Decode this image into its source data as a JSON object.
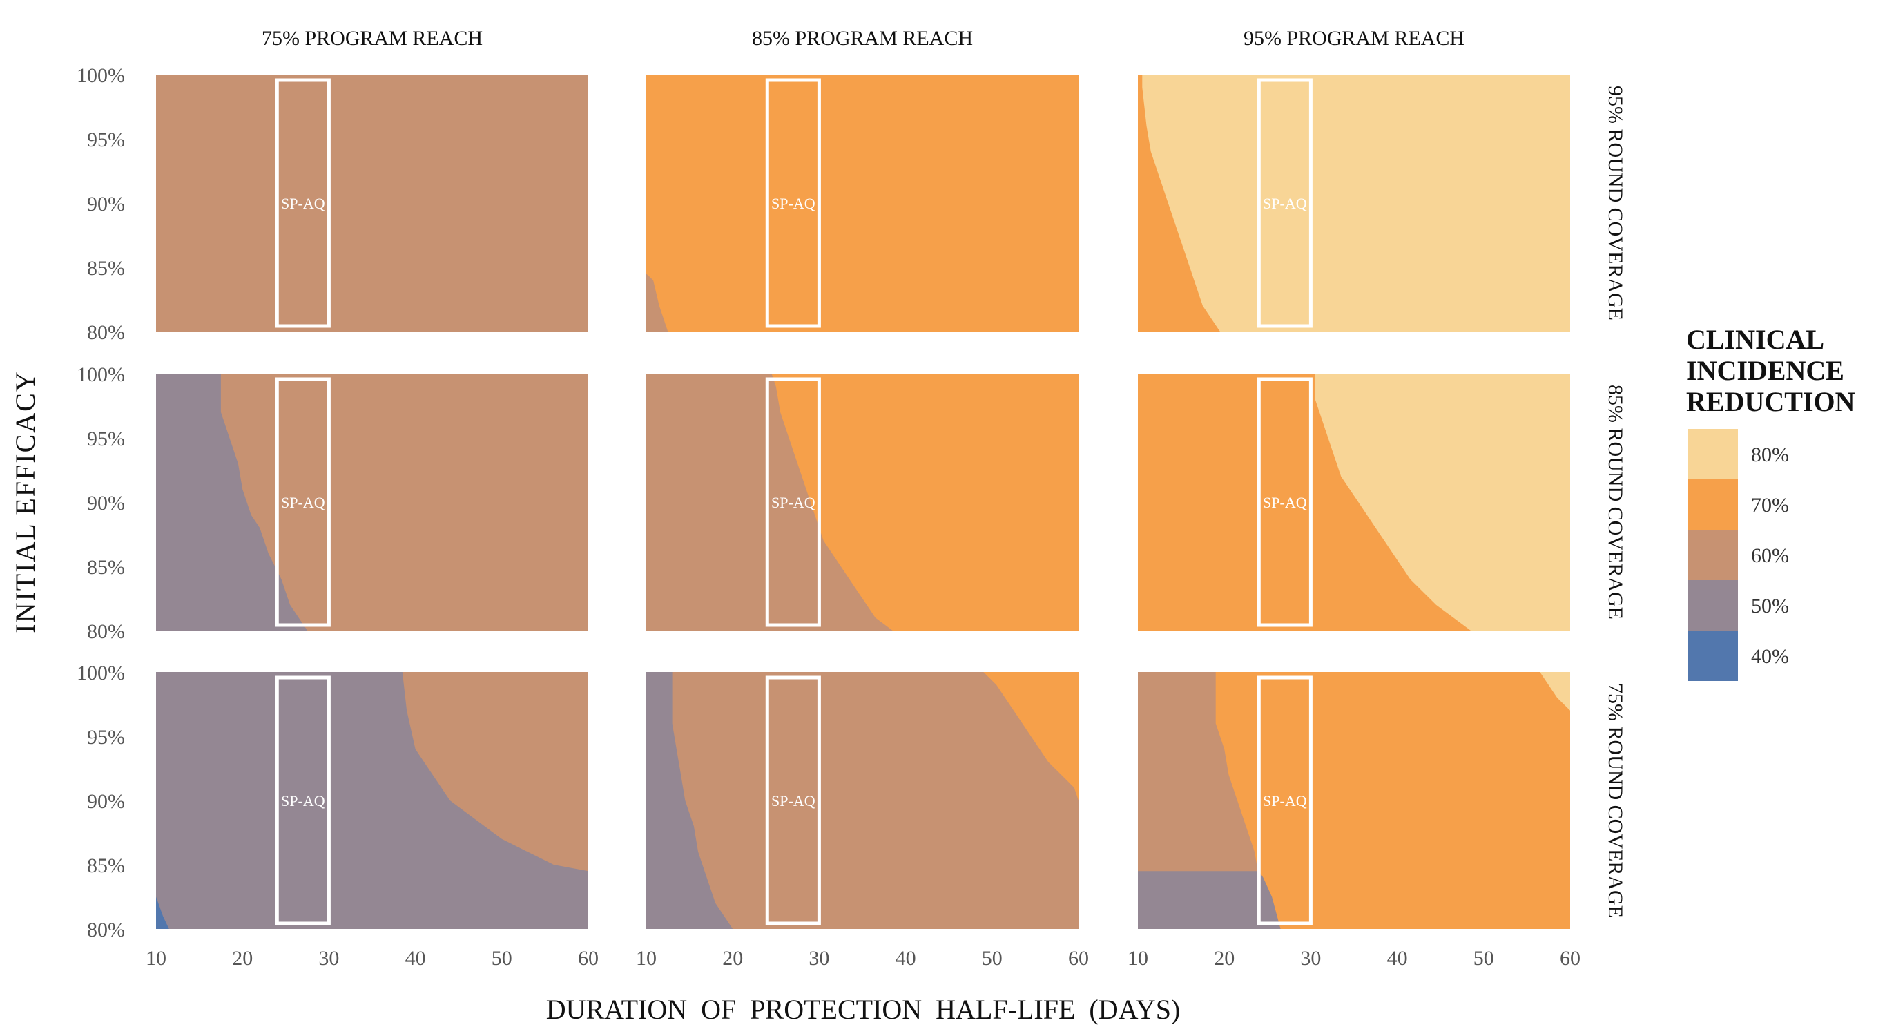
{
  "chart_data": {
    "type": "heatmap",
    "ylabel": "INITIAL EFFICACY",
    "xlabel": "DURATION OF PROTECTION HALF-LIFE (DAYS)",
    "col_facets": [
      "75% PROGRAM REACH",
      "85% PROGRAM REACH",
      "95% PROGRAM REACH"
    ],
    "row_facets": [
      "95% ROUND COVERAGE",
      "85% ROUND COVERAGE",
      "75% ROUND COVERAGE"
    ],
    "x_range": [
      10,
      60
    ],
    "y_range": [
      80,
      100
    ],
    "x_ticks": [
      10,
      20,
      30,
      40,
      50,
      60
    ],
    "x_tick_labels": [
      "10",
      "20",
      "30",
      "40",
      "50",
      "60"
    ],
    "y_ticks": [
      100,
      95,
      90,
      85,
      80
    ],
    "y_tick_labels": [
      "100%",
      "95%",
      "90%",
      "85%",
      "80%"
    ],
    "legend": {
      "title_lines": [
        "CLINICAL",
        "INCIDENCE",
        "REDUCTION"
      ],
      "placement": "right",
      "items": [
        {
          "label": "80%",
          "color": "#f8d596"
        },
        {
          "label": "70%",
          "color": "#f6a04a"
        },
        {
          "label": "60%",
          "color": "#c79272"
        },
        {
          "label": "50%",
          "color": "#948793"
        },
        {
          "label": "40%",
          "color": "#5277ad"
        }
      ]
    },
    "highlight": {
      "label": "SP-AQ",
      "x_range": [
        24,
        30
      ],
      "y_range": [
        80,
        100
      ]
    },
    "panels": [
      {
        "program_reach": "75% PROGRAM REACH",
        "round_coverage": "95% ROUND COVERAGE",
        "base": "60%",
        "regions": []
      },
      {
        "program_reach": "85% PROGRAM REACH",
        "round_coverage": "95% ROUND COVERAGE",
        "base": "70%",
        "regions": [
          {
            "level": "60%",
            "x_start": 10,
            "boundary": [
              [
                80,
                12.5
              ],
              [
                82,
                11.5
              ],
              [
                84,
                10.8
              ],
              [
                84.5,
                10
              ]
            ]
          }
        ]
      },
      {
        "program_reach": "95% PROGRAM REACH",
        "round_coverage": "95% ROUND COVERAGE",
        "base": "80%",
        "regions": [
          {
            "level": "70%",
            "x_start": 10,
            "boundary": [
              [
                80,
                19.5
              ],
              [
                81,
                18.5
              ],
              [
                82,
                17.5
              ],
              [
                84,
                16.5
              ],
              [
                86,
                15.5
              ],
              [
                88,
                14.5
              ],
              [
                90,
                13.5
              ],
              [
                92,
                12.5
              ],
              [
                94,
                11.5
              ],
              [
                96,
                11
              ],
              [
                99,
                10.5
              ],
              [
                100,
                10.5
              ]
            ]
          }
        ]
      },
      {
        "program_reach": "75% PROGRAM REACH",
        "round_coverage": "85% ROUND COVERAGE",
        "base": "60%",
        "regions": [
          {
            "level": "50%",
            "x_start": 10,
            "boundary": [
              [
                80,
                27.5
              ],
              [
                81,
                26.5
              ],
              [
                82,
                25.5
              ],
              [
                84,
                24.5
              ],
              [
                86,
                23
              ],
              [
                88,
                22
              ],
              [
                89,
                21
              ],
              [
                91,
                20
              ],
              [
                93,
                19.5
              ],
              [
                95,
                18.5
              ],
              [
                97,
                17.5
              ],
              [
                100,
                17.5
              ]
            ]
          }
        ]
      },
      {
        "program_reach": "85% PROGRAM REACH",
        "round_coverage": "85% ROUND COVERAGE",
        "base": "70%",
        "regions": [
          {
            "level": "60%",
            "x_start": 10,
            "boundary": [
              [
                80,
                38.5
              ],
              [
                81,
                36.5
              ],
              [
                82,
                35.5
              ],
              [
                83,
                34.5
              ],
              [
                84,
                33.5
              ],
              [
                85,
                32.5
              ],
              [
                86,
                31.5
              ],
              [
                87,
                30.5
              ],
              [
                89,
                29.5
              ],
              [
                91,
                28.5
              ],
              [
                93,
                27.5
              ],
              [
                95,
                26.5
              ],
              [
                97,
                25.5
              ],
              [
                99,
                25
              ],
              [
                100,
                24.5
              ]
            ]
          }
        ]
      },
      {
        "program_reach": "95% PROGRAM REACH",
        "round_coverage": "85% ROUND COVERAGE",
        "base": "70%",
        "regions": [
          {
            "level": "80%",
            "x_start": 60,
            "boundary": [
              [
                80,
                48.5
              ],
              [
                81,
                46.5
              ],
              [
                82,
                44.5
              ],
              [
                83,
                43
              ],
              [
                84,
                41.5
              ],
              [
                85,
                40.5
              ],
              [
                86,
                39.5
              ],
              [
                87,
                38.5
              ],
              [
                88,
                37.5
              ],
              [
                89,
                36.5
              ],
              [
                90,
                35.5
              ],
              [
                91,
                34.5
              ],
              [
                92,
                33.5
              ],
              [
                94,
                32.5
              ],
              [
                96,
                31.5
              ],
              [
                98,
                30.5
              ],
              [
                100,
                30.5
              ]
            ]
          }
        ]
      },
      {
        "program_reach": "75% PROGRAM REACH",
        "round_coverage": "75% ROUND COVERAGE",
        "base": "60%",
        "regions": [
          {
            "level": "50%",
            "x_start": 10,
            "boundary": [
              [
                80,
                60
              ],
              [
                84.5,
                60
              ],
              [
                85,
                56
              ],
              [
                86,
                53
              ],
              [
                87,
                50
              ],
              [
                88,
                48
              ],
              [
                89,
                46
              ],
              [
                90,
                44
              ],
              [
                91,
                43
              ],
              [
                92,
                42
              ],
              [
                93,
                41
              ],
              [
                94,
                40
              ],
              [
                97,
                39
              ],
              [
                100,
                38.5
              ]
            ]
          },
          {
            "level": "40%",
            "x_start": 10,
            "boundary": [
              [
                80,
                11.5
              ],
              [
                81,
                10.8
              ],
              [
                82.5,
                10
              ]
            ]
          }
        ]
      },
      {
        "program_reach": "85% PROGRAM REACH",
        "round_coverage": "75% ROUND COVERAGE",
        "base": "60%",
        "regions": [
          {
            "level": "70%",
            "x_start": 60,
            "boundary": [
              [
                90,
                60
              ],
              [
                91,
                59.5
              ],
              [
                92,
                58
              ],
              [
                93,
                56.5
              ],
              [
                94,
                55.5
              ],
              [
                95,
                54.5
              ],
              [
                96,
                53.5
              ],
              [
                97,
                52.5
              ],
              [
                98,
                51.5
              ],
              [
                99,
                50.5
              ],
              [
                100,
                49
              ]
            ]
          },
          {
            "level": "50%",
            "x_start": 10,
            "boundary": [
              [
                80,
                20
              ],
              [
                81,
                19
              ],
              [
                82,
                18
              ],
              [
                84,
                17
              ],
              [
                86,
                16
              ],
              [
                88,
                15.5
              ],
              [
                90,
                14.5
              ],
              [
                92,
                14
              ],
              [
                94,
                13.5
              ],
              [
                96,
                13
              ],
              [
                98,
                13
              ],
              [
                100,
                13
              ]
            ]
          }
        ]
      },
      {
        "program_reach": "95% PROGRAM REACH",
        "round_coverage": "75% ROUND COVERAGE",
        "base": "70%",
        "regions": [
          {
            "level": "60%",
            "x_start": 10,
            "boundary": [
              [
                80,
                26.5
              ],
              [
                81,
                26
              ],
              [
                82,
                25
              ],
              [
                84,
                24
              ],
              [
                86,
                23.5
              ],
              [
                88,
                22.5
              ],
              [
                90,
                21.5
              ],
              [
                92,
                20.5
              ],
              [
                94,
                20
              ],
              [
                96,
                19
              ],
              [
                98,
                19
              ],
              [
                100,
                19
              ]
            ]
          },
          {
            "level": "50%",
            "x_start": 10,
            "boundary": [
              [
                80,
                26.5
              ],
              [
                82.5,
                25.5
              ],
              [
                84,
                24.5
              ],
              [
                84.5,
                24
              ]
            ]
          },
          {
            "level": "80%",
            "x_start": 60,
            "boundary": [
              [
                97,
                60
              ],
              [
                98,
                58.5
              ],
              [
                99,
                57.5
              ],
              [
                100,
                56.5
              ]
            ]
          }
        ]
      }
    ]
  }
}
